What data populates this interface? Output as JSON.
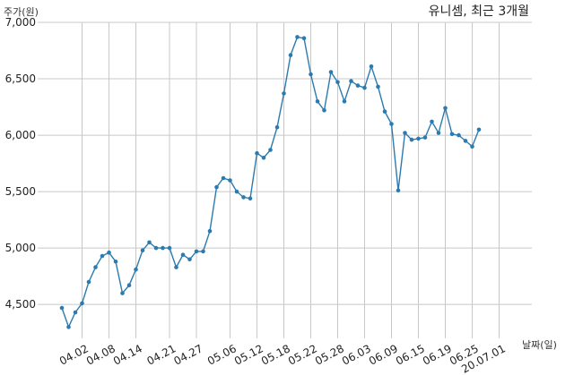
{
  "chart_data": {
    "type": "line",
    "title": "유니셈, 최근 3개월",
    "xlabel": "날짜(일)",
    "ylabel": "주가(원)",
    "ylim": [
      4200,
      7000
    ],
    "yticks": [
      4500,
      5000,
      5500,
      6000,
      6500,
      7000
    ],
    "yticks_labels": [
      "4,500",
      "5,000",
      "5,500",
      "6,000",
      "6,500",
      "7,000"
    ],
    "grid": true,
    "series_color": "#2b7bb0",
    "x_tick_labels": [
      {
        "label": "04.02",
        "index": 3
      },
      {
        "label": "04.08",
        "index": 7
      },
      {
        "label": "04.14",
        "index": 11
      },
      {
        "label": "04.21",
        "index": 16
      },
      {
        "label": "04.27",
        "index": 20
      },
      {
        "label": "05.06",
        "index": 25
      },
      {
        "label": "05.12",
        "index": 29
      },
      {
        "label": "05.18",
        "index": 33
      },
      {
        "label": "05.22",
        "index": 37
      },
      {
        "label": "05.28",
        "index": 41
      },
      {
        "label": "06.03",
        "index": 45
      },
      {
        "label": "06.09",
        "index": 49
      },
      {
        "label": "06.15",
        "index": 53
      },
      {
        "label": "06.19",
        "index": 57
      },
      {
        "label": "06.25",
        "index": 61
      },
      {
        "label": "20.07.01",
        "index": 65
      }
    ],
    "series": [
      {
        "values": [
          4470,
          4300,
          4430,
          4510,
          4700,
          4830,
          4930,
          4960,
          4880,
          4600,
          4670,
          4810,
          4980,
          5050,
          5000,
          5000,
          5000,
          4830,
          4940,
          4900,
          4970,
          4970,
          5150,
          5540,
          5620,
          5600,
          5500,
          5450,
          5440,
          5840,
          5800,
          5870,
          6070,
          6370,
          6710,
          6870,
          6860,
          6540,
          6300,
          6220,
          6560,
          6470,
          6300,
          6480,
          6440,
          6420,
          6610,
          6430,
          6210,
          6100,
          5510,
          6020,
          5960,
          5970,
          5980,
          6120,
          6020,
          6240,
          6010,
          6000,
          5950,
          5900,
          6050
        ]
      }
    ]
  }
}
